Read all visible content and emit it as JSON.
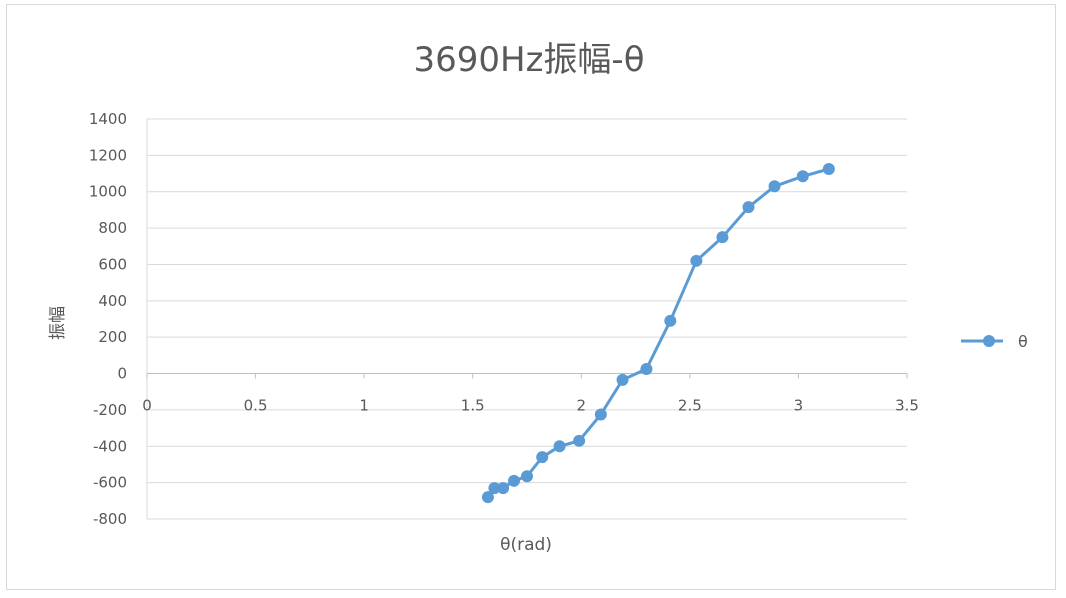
{
  "chart_data": {
    "type": "line",
    "title": "3690Hz振幅-θ",
    "xlabel": "θ(rad)",
    "ylabel": "振幅",
    "xlim": [
      0,
      3.5
    ],
    "ylim": [
      -800,
      1400
    ],
    "xticks": [
      "0",
      "0.5",
      "1",
      "1.5",
      "2",
      "2.5",
      "3",
      "3.5"
    ],
    "xtick_values": [
      0,
      0.5,
      1,
      1.5,
      2,
      2.5,
      3,
      3.5
    ],
    "yticks": [
      "1400",
      "1200",
      "1000",
      "800",
      "600",
      "400",
      "200",
      "0",
      "-200",
      "-400",
      "-600",
      "-800"
    ],
    "ytick_values": [
      1400,
      1200,
      1000,
      800,
      600,
      400,
      200,
      0,
      -200,
      -400,
      -600,
      -800
    ],
    "grid": true,
    "legend_position": "right",
    "series": [
      {
        "name": "θ",
        "color": "#5b9bd5",
        "marker": "circle",
        "x": [
          1.57,
          1.6,
          1.64,
          1.69,
          1.75,
          1.82,
          1.9,
          1.99,
          2.09,
          2.19,
          2.3,
          2.41,
          2.53,
          2.65,
          2.77,
          2.89,
          3.02,
          3.14
        ],
        "y": [
          -680,
          -630,
          -630,
          -590,
          -565,
          -460,
          -400,
          -370,
          -225,
          -35,
          25,
          290,
          620,
          750,
          915,
          1030,
          1085,
          1125
        ]
      }
    ]
  }
}
